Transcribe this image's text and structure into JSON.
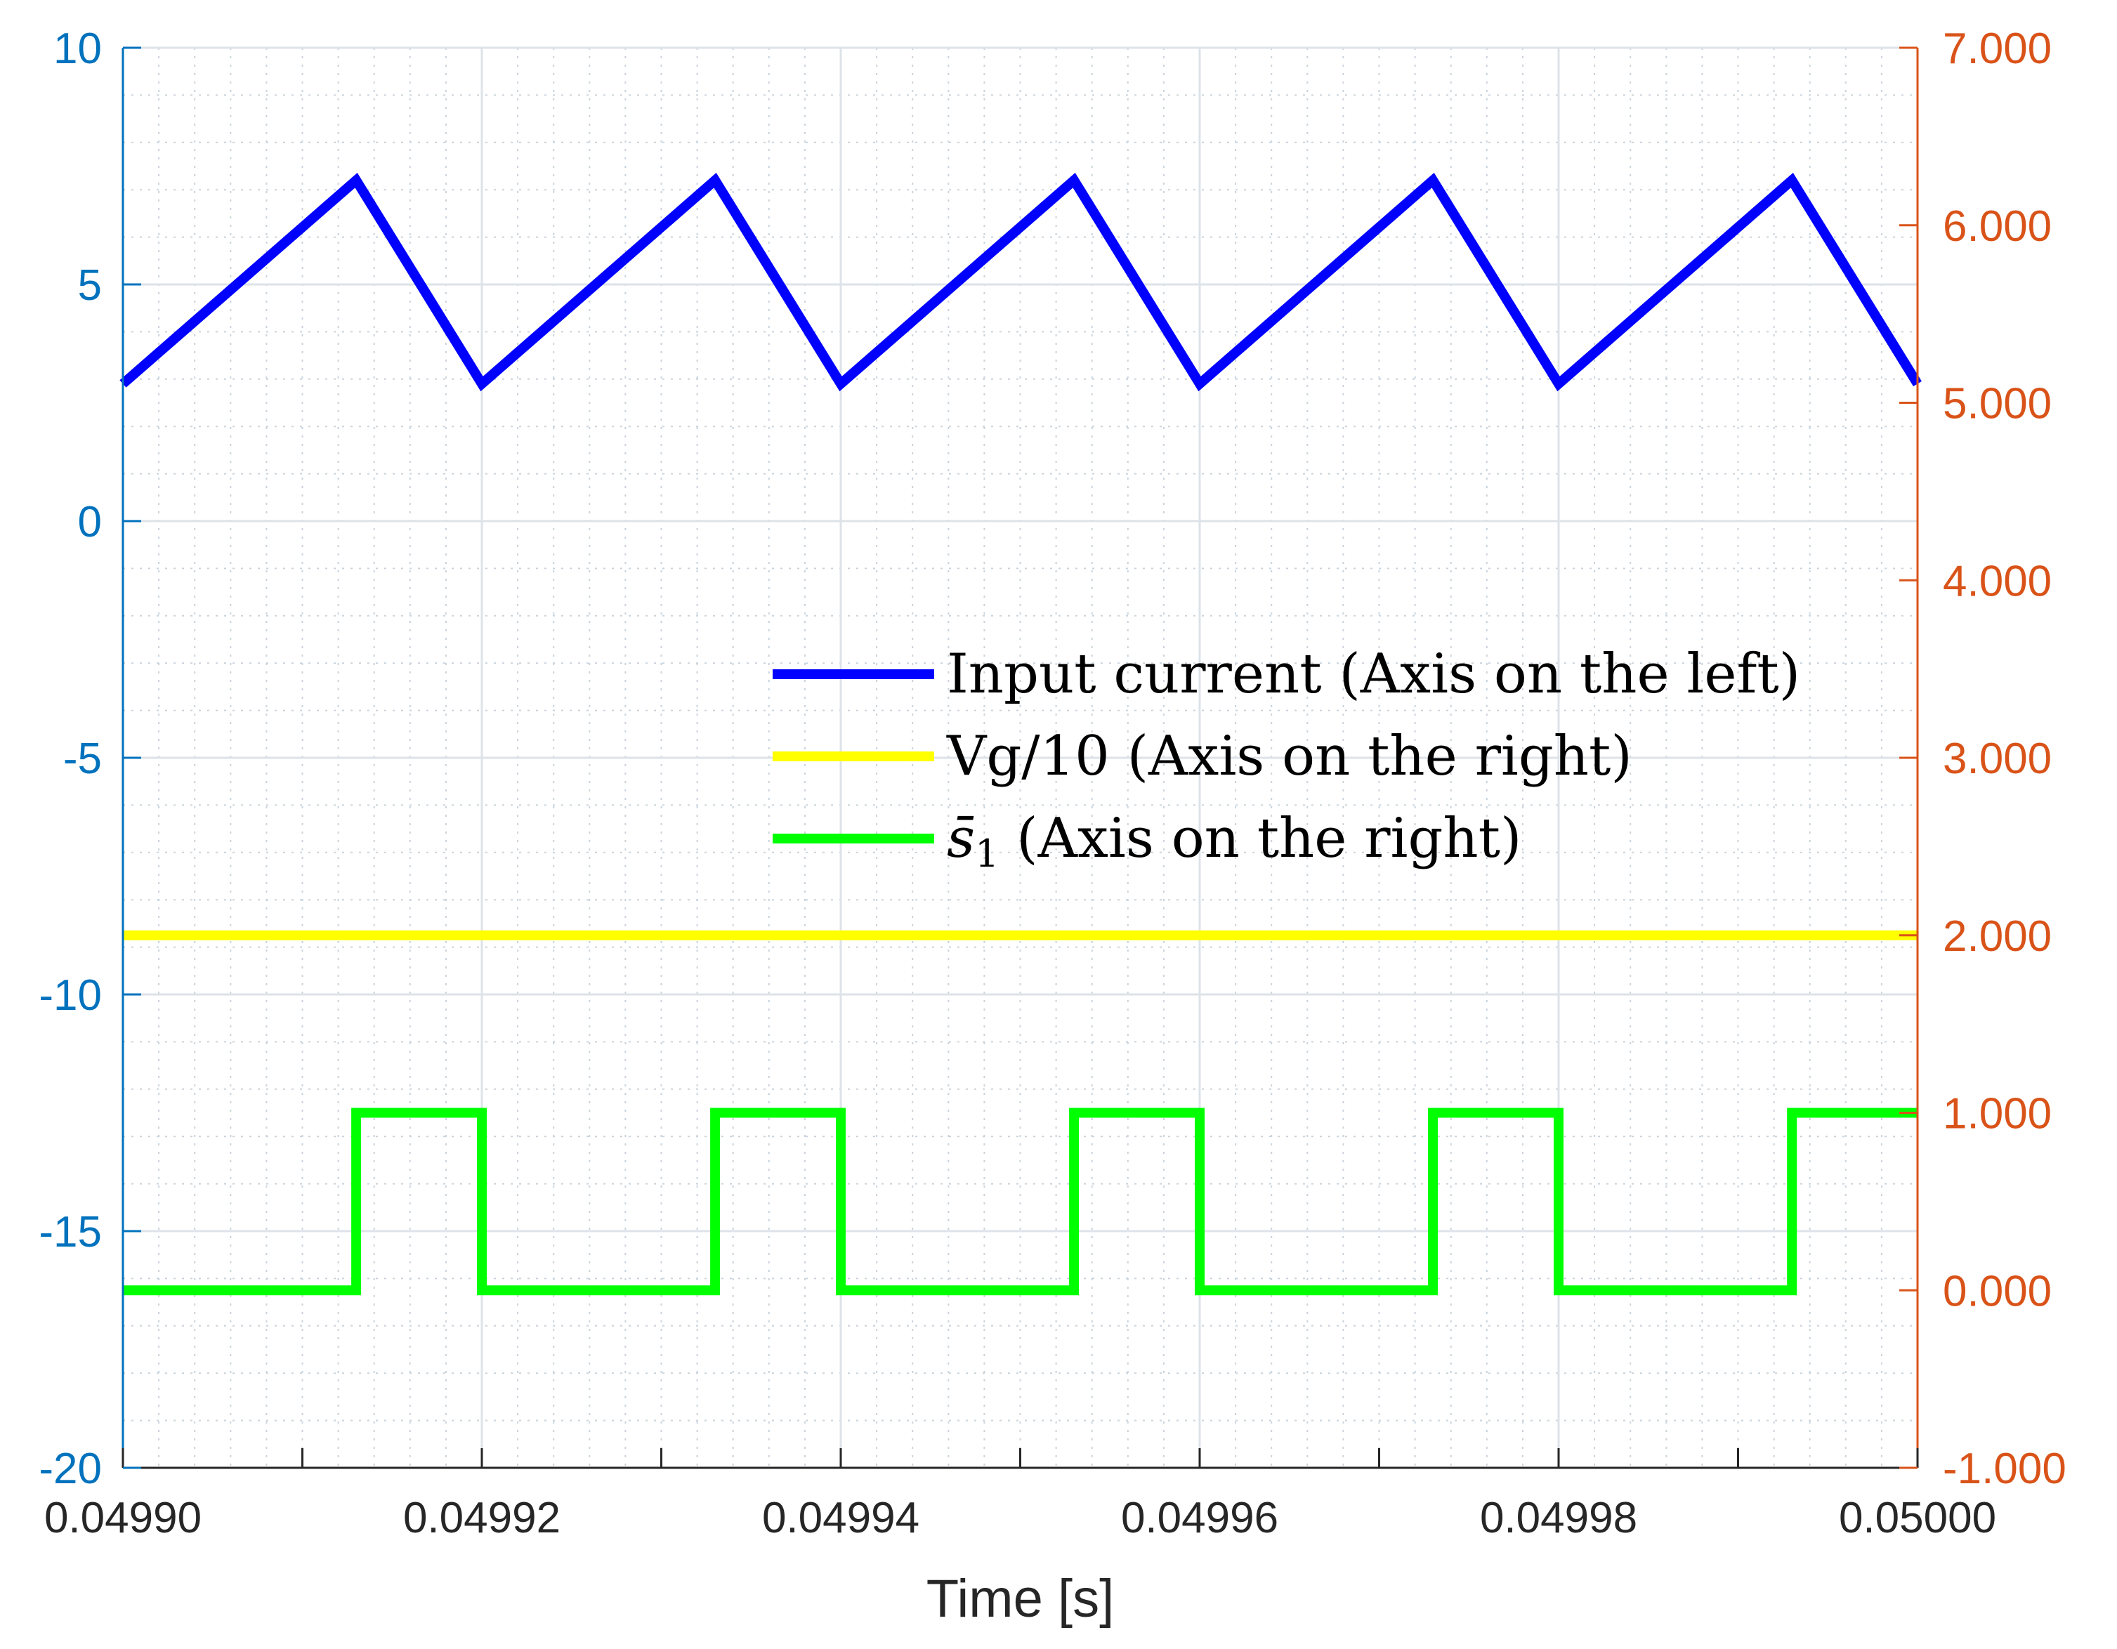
{
  "chart_data": {
    "type": "line",
    "xlabel": "Time [s]",
    "x_ticks": [
      "0.04990",
      "0.04992",
      "0.04994",
      "0.04996",
      "0.04998",
      "0.05000"
    ],
    "x_tick_values": [
      0.0499,
      0.04992,
      0.04994,
      0.04996,
      0.04998,
      0.05
    ],
    "xlim": [
      0.0499,
      0.05
    ],
    "y_left": {
      "lim": [
        -20,
        10
      ],
      "ticks": [
        "10",
        "5",
        "0",
        "-5",
        "-10",
        "-15",
        "-20"
      ],
      "tick_values": [
        10,
        5,
        0,
        -5,
        -10,
        -15,
        -20
      ],
      "color": "#0072BD"
    },
    "y_right": {
      "lim": [
        -1,
        7
      ],
      "ticks": [
        "7.000",
        "6.000",
        "5.000",
        "4.000",
        "3.000",
        "2.000",
        "1.000",
        "0.000",
        "-1.000"
      ],
      "tick_values": [
        7,
        6,
        5,
        4,
        3,
        2,
        1,
        0,
        -1
      ],
      "color": "#D95319"
    },
    "grid": true,
    "minor_grid": true,
    "legend_position": "center-right",
    "series": [
      {
        "name": "Input current (Axis on the left)",
        "axis": "left",
        "color": "#0000FF",
        "x": [
          0.0499,
          0.049913,
          0.04992,
          0.049933,
          0.04994,
          0.049953,
          0.04996,
          0.049973,
          0.04998,
          0.049993,
          0.05
        ],
        "y": [
          2.9,
          7.2,
          2.9,
          7.2,
          2.9,
          7.2,
          2.9,
          7.2,
          2.9,
          7.2,
          2.9
        ]
      },
      {
        "name": "Vg/10 (Axis on the right)",
        "axis": "right",
        "color": "#FFFF00",
        "x": [
          0.0499,
          0.05
        ],
        "y": [
          2.0,
          2.0
        ]
      },
      {
        "name": "s̄1 (Axis on the right)",
        "name_main": "s̄",
        "name_sub": "1",
        "name_rest": " (Axis on the right)",
        "axis": "right",
        "color": "#00FF00",
        "step": true,
        "x": [
          0.0499,
          0.049913,
          0.049913,
          0.04992,
          0.04992,
          0.049933,
          0.049933,
          0.04994,
          0.04994,
          0.049953,
          0.049953,
          0.04996,
          0.04996,
          0.049973,
          0.049973,
          0.04998,
          0.04998,
          0.049993,
          0.049993,
          0.05
        ],
        "y": [
          0,
          0,
          1,
          1,
          0,
          0,
          1,
          1,
          0,
          0,
          1,
          1,
          0,
          0,
          1,
          1,
          0,
          0,
          1,
          1
        ]
      }
    ]
  }
}
